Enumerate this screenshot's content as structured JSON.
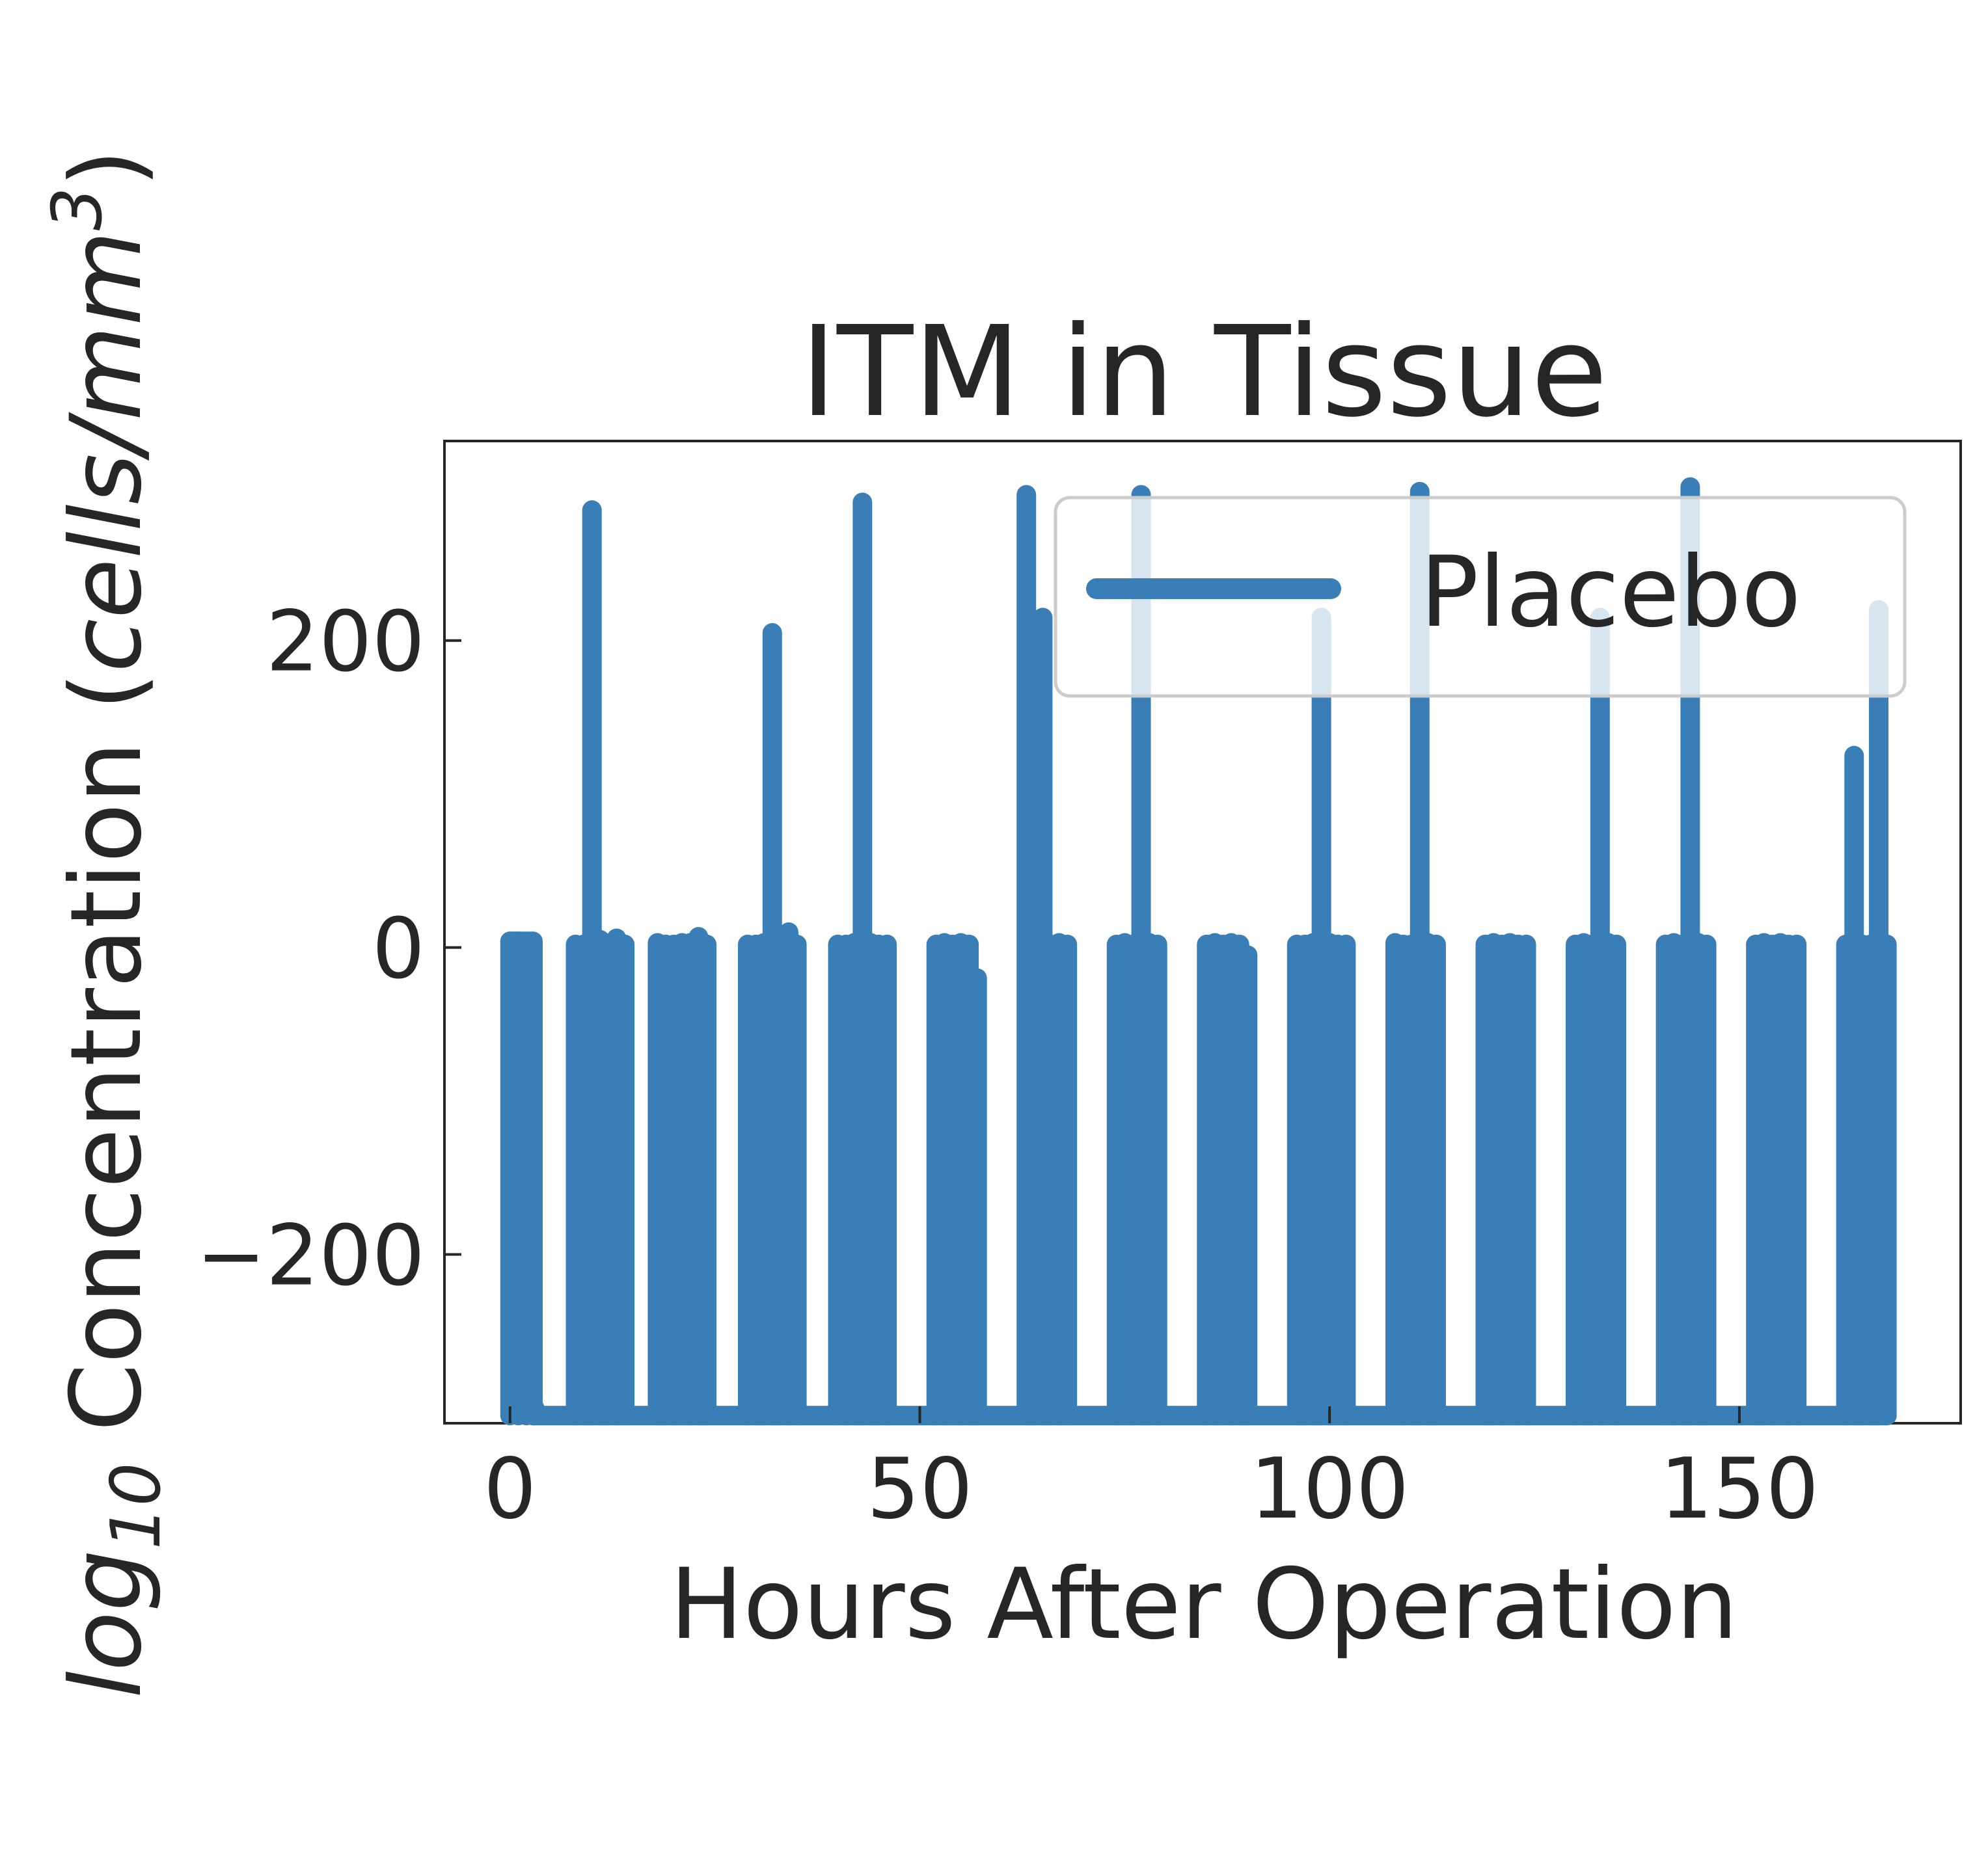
{
  "chart_data": {
    "type": "line",
    "title": "ITM in Tissue",
    "xlabel": "Hours After Operation",
    "ylabel": "log10 Concentration (cells/mm^3)",
    "ylabel_parts": {
      "log": "log",
      "sub": "10",
      "mid": " Concentration (",
      "italic": "cells/mm",
      "sup": "3",
      "end": ")"
    },
    "xlim": [
      -8,
      177
    ],
    "ylim": [
      -310,
      330
    ],
    "xticks": [
      0,
      50,
      100,
      150
    ],
    "xtick_labels": [
      "0",
      "50",
      "100",
      "150"
    ],
    "yticks": [
      -200,
      0,
      200
    ],
    "ytick_labels": [
      "−200",
      "0",
      "200"
    ],
    "grid": false,
    "legend_position": "top-right",
    "series": [
      {
        "name": "Placebo",
        "color": "#3a7eb8",
        "x": [
          0,
          1,
          2,
          2.8,
          3,
          8,
          9,
          10,
          11,
          12,
          13,
          14,
          18,
          19,
          20,
          21,
          22,
          23,
          24,
          29,
          30,
          31,
          32,
          33,
          34,
          35,
          40,
          41,
          42,
          43,
          44,
          45,
          46,
          52,
          53,
          54,
          55,
          56,
          57,
          63,
          64,
          65,
          66,
          67,
          68,
          74,
          75,
          76,
          77,
          78,
          79,
          85,
          86,
          87,
          88,
          89,
          90,
          96,
          97,
          98,
          99,
          100,
          101,
          102,
          108,
          109,
          110,
          111,
          112,
          113,
          119,
          120,
          121,
          122,
          123,
          124,
          130,
          131,
          132,
          133,
          134,
          135,
          141,
          142,
          143,
          144,
          145,
          146,
          152,
          153,
          154,
          155,
          156,
          157,
          163,
          164,
          165,
          166,
          167,
          168
        ],
        "y": [
          4,
          4,
          3,
          3,
          -300,
          2,
          2,
          285,
          5,
          2,
          6,
          2,
          3,
          2,
          2,
          3,
          3,
          7,
          2,
          2,
          2,
          3,
          205,
          6,
          10,
          2,
          2,
          2,
          3,
          290,
          3,
          2,
          2,
          2,
          3,
          2,
          3,
          2,
          -20,
          295,
          3,
          215,
          2,
          3,
          2,
          2,
          3,
          2,
          295,
          3,
          2,
          2,
          3,
          2,
          3,
          2,
          -5,
          2,
          2,
          3,
          215,
          3,
          2,
          2,
          3,
          2,
          2,
          297,
          3,
          2,
          2,
          3,
          2,
          3,
          2,
          2,
          2,
          3,
          2,
          215,
          3,
          2,
          2,
          3,
          2,
          300,
          3,
          2,
          2,
          3,
          2,
          3,
          2,
          2,
          2,
          125,
          2,
          2,
          220,
          2
        ]
      }
    ]
  }
}
